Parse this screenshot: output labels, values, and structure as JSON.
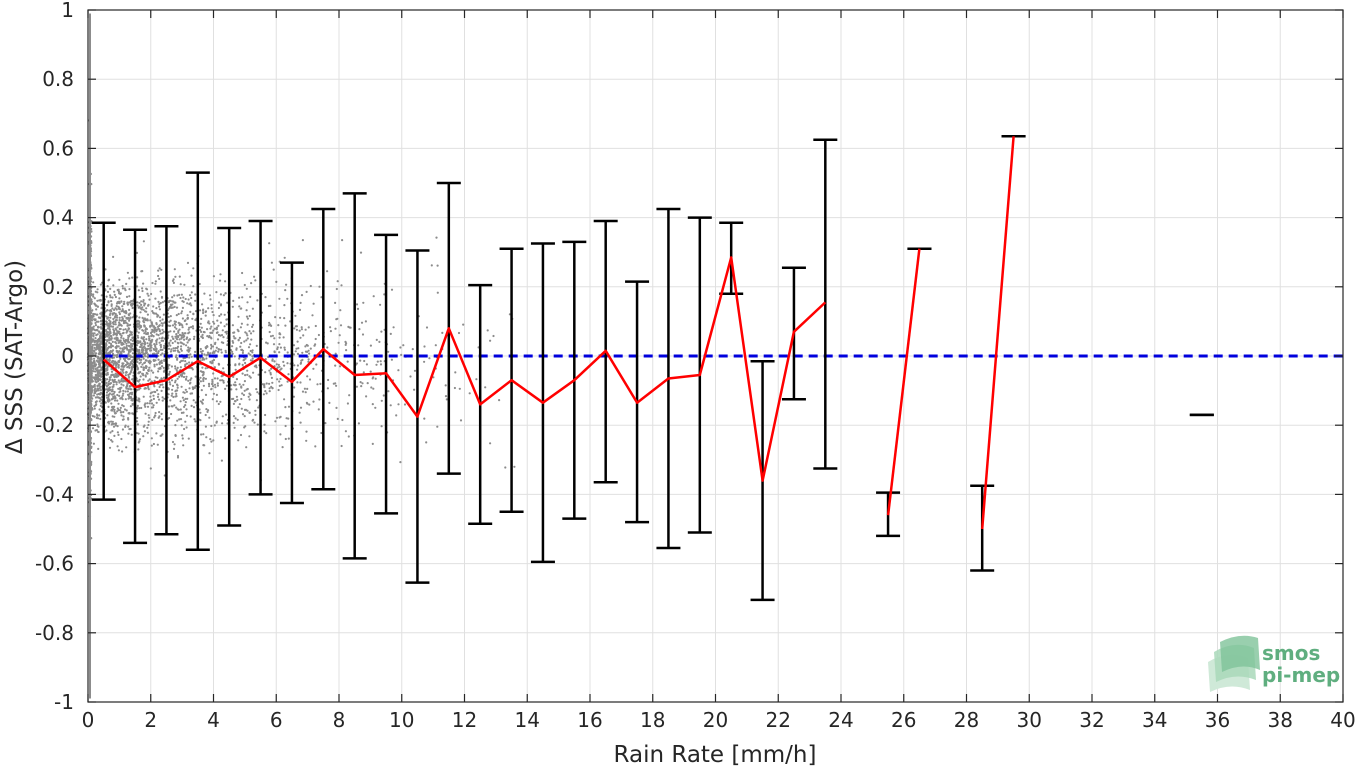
{
  "chart_data": {
    "type": "scatter",
    "xlabel": "Rain Rate [mm/h]",
    "ylabel": "Δ SSS (SAT-Argo)",
    "xlim": [
      0,
      40
    ],
    "ylim": [
      -1,
      1
    ],
    "x_ticks": [
      0,
      2,
      4,
      6,
      8,
      10,
      12,
      14,
      16,
      18,
      20,
      22,
      24,
      26,
      28,
      30,
      32,
      34,
      36,
      38,
      40
    ],
    "y_ticks": [
      -1,
      -0.8,
      -0.6,
      -0.4,
      -0.2,
      0,
      0.2,
      0.4,
      0.6,
      0.8,
      1
    ],
    "y_tick_labels": [
      "-1",
      "-0.8",
      "-0.6",
      "-0.4",
      "-0.2",
      "0",
      "0.2",
      "0.4",
      "0.6",
      "0.8",
      "1"
    ],
    "grid": true,
    "colors": {
      "scatter": "#8c8c8c",
      "mean_line": "#ff0000",
      "error_bars": "#000000",
      "zero_line": "#0000dd",
      "grid": "#e0e0e0",
      "axes": "#262626"
    },
    "series": [
      {
        "role": "binned-mean",
        "x": [
          0.5,
          1.5,
          2.5,
          3.5,
          4.5,
          5.5,
          6.5,
          7.5,
          8.5,
          9.5,
          10.5,
          11.5,
          12.5,
          13.5,
          14.5,
          15.5,
          16.5,
          17.5,
          18.5,
          19.5,
          20.5,
          21.5,
          22.5,
          23.5,
          25.5,
          26.5,
          28.5,
          29.5,
          35.5
        ],
        "y": [
          -0.01,
          -0.09,
          -0.07,
          -0.015,
          -0.06,
          -0.005,
          -0.075,
          0.02,
          -0.055,
          -0.05,
          -0.175,
          0.08,
          -0.14,
          -0.07,
          -0.135,
          -0.07,
          0.015,
          -0.135,
          -0.065,
          -0.055,
          0.285,
          -0.36,
          0.07,
          0.155,
          -0.46,
          0.31,
          -0.5,
          0.635,
          -0.17
        ],
        "segments": [
          [
            0,
            23
          ],
          [
            24,
            25
          ],
          [
            26,
            27
          ]
        ]
      },
      {
        "role": "error-bars",
        "x": [
          0.5,
          1.5,
          2.5,
          3.5,
          4.5,
          5.5,
          6.5,
          7.5,
          8.5,
          9.5,
          10.5,
          11.5,
          12.5,
          13.5,
          14.5,
          15.5,
          16.5,
          17.5,
          18.5,
          19.5,
          20.5,
          21.5,
          22.5,
          23.5,
          25.5,
          26.5,
          28.5,
          29.5,
          35.5
        ],
        "upper": [
          0.385,
          0.365,
          0.375,
          0.53,
          0.37,
          0.39,
          0.27,
          0.425,
          0.47,
          0.35,
          0.305,
          0.5,
          0.205,
          0.31,
          0.325,
          0.33,
          0.39,
          0.215,
          0.425,
          0.4,
          0.385,
          -0.015,
          0.255,
          0.625,
          -0.395,
          0.31,
          -0.375,
          0.635,
          -0.17
        ],
        "lower": [
          -0.415,
          -0.54,
          -0.515,
          -0.56,
          -0.49,
          -0.4,
          -0.425,
          -0.385,
          -0.585,
          -0.455,
          -0.655,
          -0.34,
          -0.485,
          -0.45,
          -0.595,
          -0.47,
          -0.365,
          -0.48,
          -0.555,
          -0.51,
          0.18,
          -0.705,
          -0.125,
          -0.325,
          -0.52,
          0.31,
          -0.62,
          0.635,
          -0.17
        ]
      },
      {
        "role": "zero-reference",
        "y": 0
      }
    ]
  },
  "logo": {
    "line1": "smos",
    "line2": "pi-mep"
  }
}
